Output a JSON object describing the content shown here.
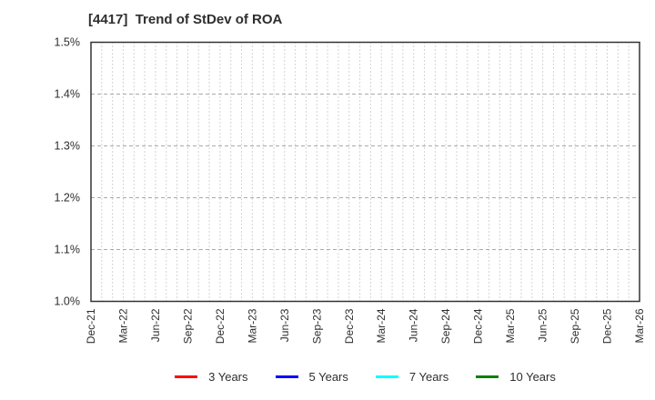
{
  "title": "[4417]  Trend of StDev of ROA",
  "chart_data": {
    "type": "line",
    "title": "[4417]  Trend of StDev of ROA",
    "x_tick_labels": [
      "Dec-21",
      "Mar-22",
      "Jun-22",
      "Sep-22",
      "Dec-22",
      "Mar-23",
      "Jun-23",
      "Sep-23",
      "Dec-23",
      "Mar-24",
      "Jun-24",
      "Sep-24",
      "Dec-24",
      "Mar-25",
      "Jun-25",
      "Sep-25",
      "Dec-25",
      "Mar-26"
    ],
    "x_minor_divisions_per_tick": 3,
    "ylim": [
      1.0,
      1.5
    ],
    "y_ticks": [
      1.0,
      1.1,
      1.2,
      1.3,
      1.4,
      1.5
    ],
    "y_tick_labels": [
      "1.0%",
      "1.1%",
      "1.2%",
      "1.3%",
      "1.4%",
      "1.5%"
    ],
    "grid": true,
    "legend_position": "bottom-center",
    "series": [
      {
        "name": "3 Years",
        "color": "#ff0000",
        "values": []
      },
      {
        "name": "5 Years",
        "color": "#0000ff",
        "values": []
      },
      {
        "name": "7 Years",
        "color": "#00ffff",
        "values": []
      },
      {
        "name": "10 Years",
        "color": "#008000",
        "values": []
      }
    ],
    "colors": {
      "border": "#333333",
      "grid": "#aaaaaa",
      "tick_text": "#2e2e2e",
      "background": "#ffffff"
    }
  }
}
